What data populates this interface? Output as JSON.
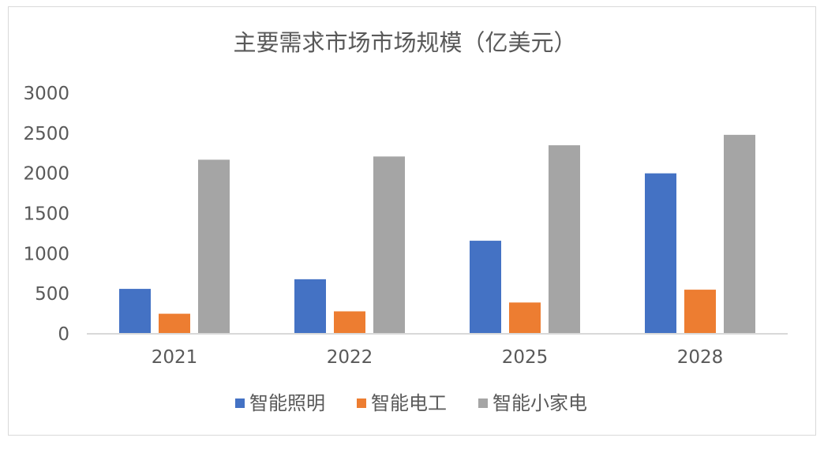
{
  "chart_data": {
    "type": "bar",
    "title": "主要需求市场市场规模（亿美元）",
    "xlabel": "",
    "ylabel": "",
    "categories": [
      "2021",
      "2022",
      "2025",
      "2028"
    ],
    "series": [
      {
        "name": "智能照明",
        "color": "#4472c4",
        "values": [
          560,
          680,
          1160,
          2000
        ]
      },
      {
        "name": "智能电工",
        "color": "#ed7d31",
        "values": [
          250,
          280,
          390,
          550
        ]
      },
      {
        "name": "智能小家电",
        "color": "#a5a5a5",
        "values": [
          2170,
          2210,
          2350,
          2480
        ]
      }
    ],
    "ylim": [
      0,
      3000
    ],
    "yticks": [
      "0",
      "500",
      "1000",
      "1500",
      "2000",
      "2500",
      "3000"
    ],
    "grid": false,
    "legend_position": "bottom"
  }
}
